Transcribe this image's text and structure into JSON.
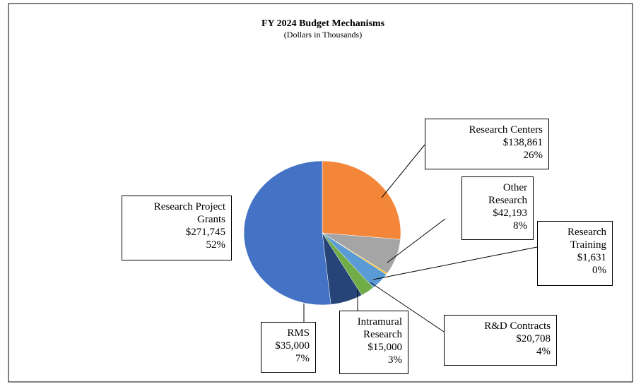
{
  "chart_data": {
    "type": "pie",
    "title": "FY 2024 Budget Mechanisms",
    "subtitle": "(Dollars in Thousands)",
    "categories": [
      "Research Centers",
      "Other Research",
      "Research Training",
      "R&D Contracts",
      "Intramural Research",
      "RMS",
      "Research Project Grants"
    ],
    "values": [
      138861,
      42193,
      1631,
      20708,
      15000,
      35000,
      271745
    ],
    "value_labels": [
      "$138,861",
      "$42,193",
      "$1,631",
      "$20,708",
      "$15,000",
      "$35,000",
      "$271,745"
    ],
    "percents": [
      26,
      8,
      0,
      4,
      3,
      7,
      52
    ],
    "percent_labels": [
      "26%",
      "8%",
      "0%",
      "4%",
      "3%",
      "7%",
      "52%"
    ],
    "colors": [
      "#f4863a",
      "#a5a5a5",
      "#ffc000",
      "#5b9bd5",
      "#70ad47",
      "#264478",
      "#4472c4"
    ]
  }
}
